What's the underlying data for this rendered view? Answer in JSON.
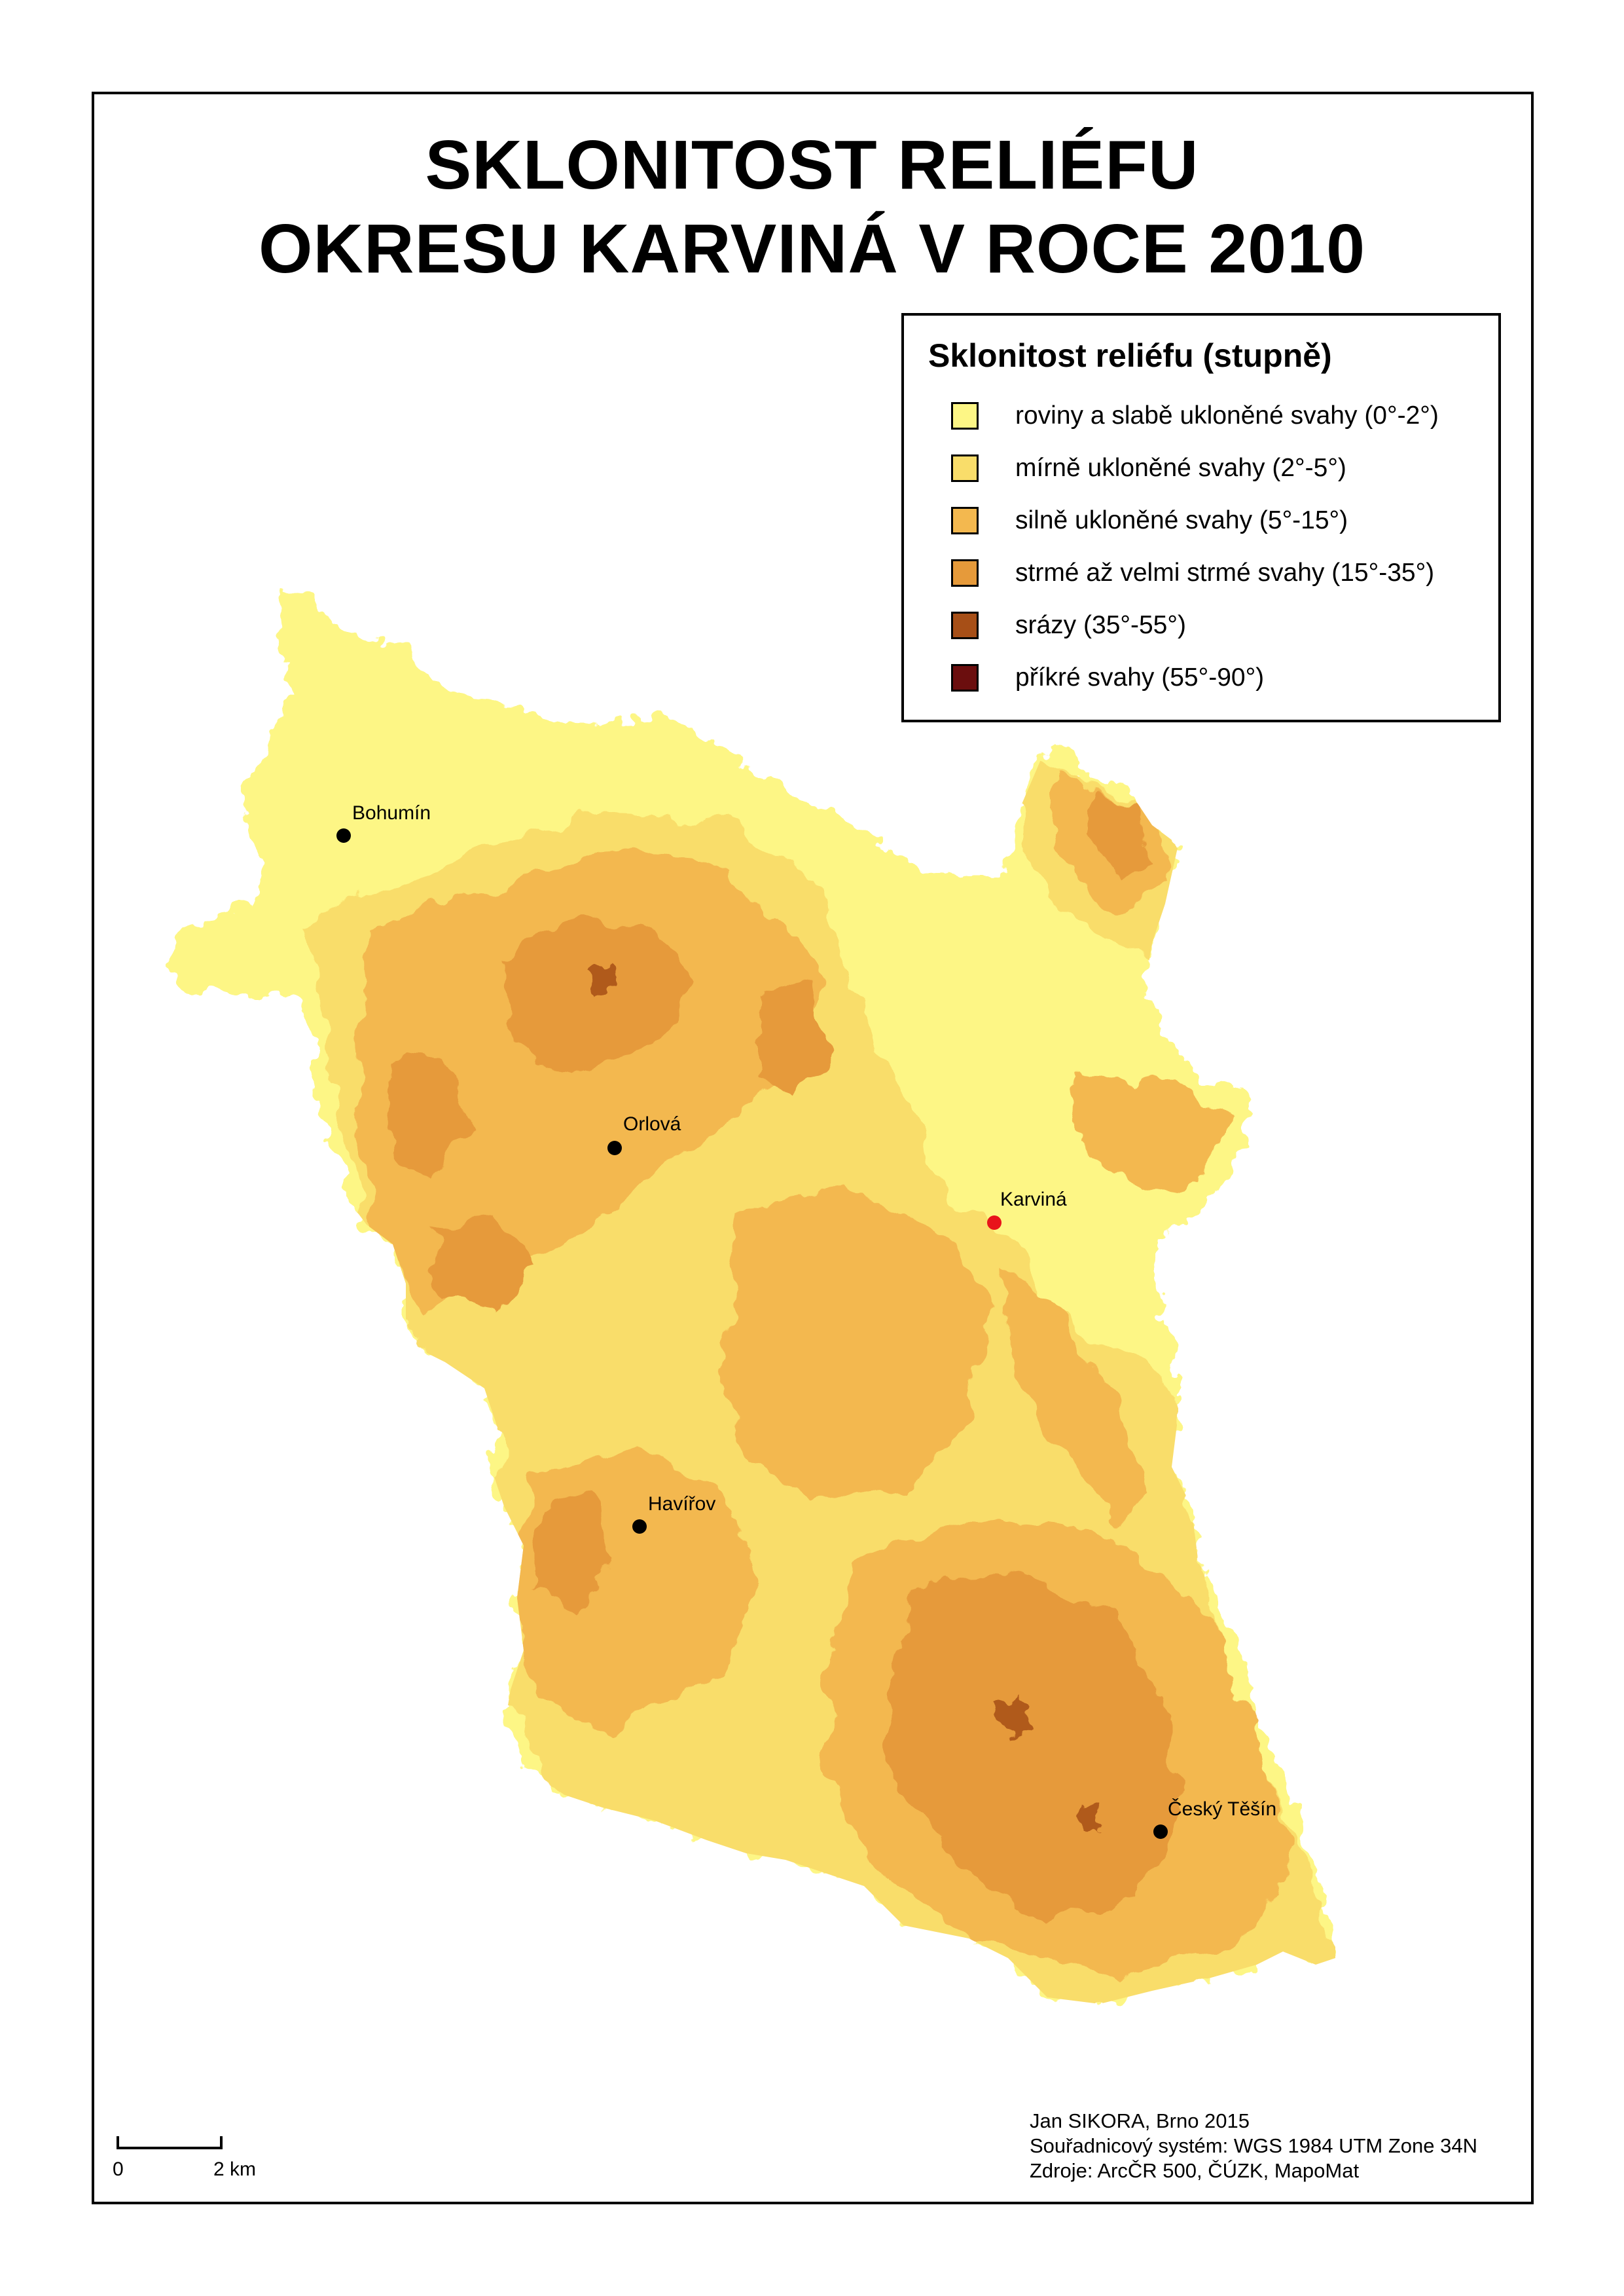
{
  "title": {
    "line1": "SKLONITOST RELIÉFU",
    "line2": "OKRESU KARVINÁ V ROCE 2010"
  },
  "legend": {
    "title": "Sklonitost reliéfu (stupně)",
    "items": [
      {
        "label": "roviny a slabě ukloněné svahy (0°-2°)",
        "color": "#fdf685"
      },
      {
        "label": "mírně ukloněné svahy (2°-5°)",
        "color": "#f9dd6a"
      },
      {
        "label": "silně ukloněné svahy (5°-15°)",
        "color": "#f3b84f"
      },
      {
        "label": "strmé až velmi strmé svahy (15°-35°)",
        "color": "#e69a3a"
      },
      {
        "label": "srázy (35°-55°)",
        "color": "#a74f17"
      },
      {
        "label": "příkré svahy (55°-90°)",
        "color": "#6b0e0e"
      }
    ]
  },
  "cities": [
    {
      "name": "Bohumín",
      "marker_color": "#000000"
    },
    {
      "name": "Orlová",
      "marker_color": "#000000"
    },
    {
      "name": "Karviná",
      "marker_color": "#e8141b"
    },
    {
      "name": "Havířov",
      "marker_color": "#000000"
    },
    {
      "name": "Český Těšín",
      "marker_color": "#000000"
    }
  ],
  "scale_bar": {
    "start_label": "0",
    "end_label": "2 km"
  },
  "credits": {
    "author": "Jan SIKORA, Brno 2015",
    "coordinate_system": "Souřadnicový systém: WGS 1984 UTM Zone 34N",
    "sources": "Zdroje: ArcČR 500, ČÚZK, MapoMat"
  }
}
